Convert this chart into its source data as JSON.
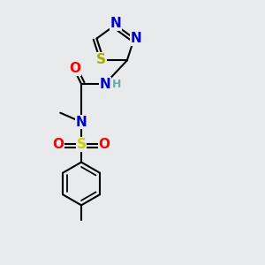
{
  "bg_color": "#e8eaec",
  "atom_colors": {
    "C": "#000000",
    "N": "#0000cc",
    "O": "#ff0000",
    "S_ring": "#aaaa00",
    "S_sul": "#cccc00",
    "H": "#6fa8a8"
  },
  "bond_color": "#000000",
  "bond_width": 1.5,
  "font_size_atom": 11,
  "font_size_small": 9,
  "dbo": 0.012
}
